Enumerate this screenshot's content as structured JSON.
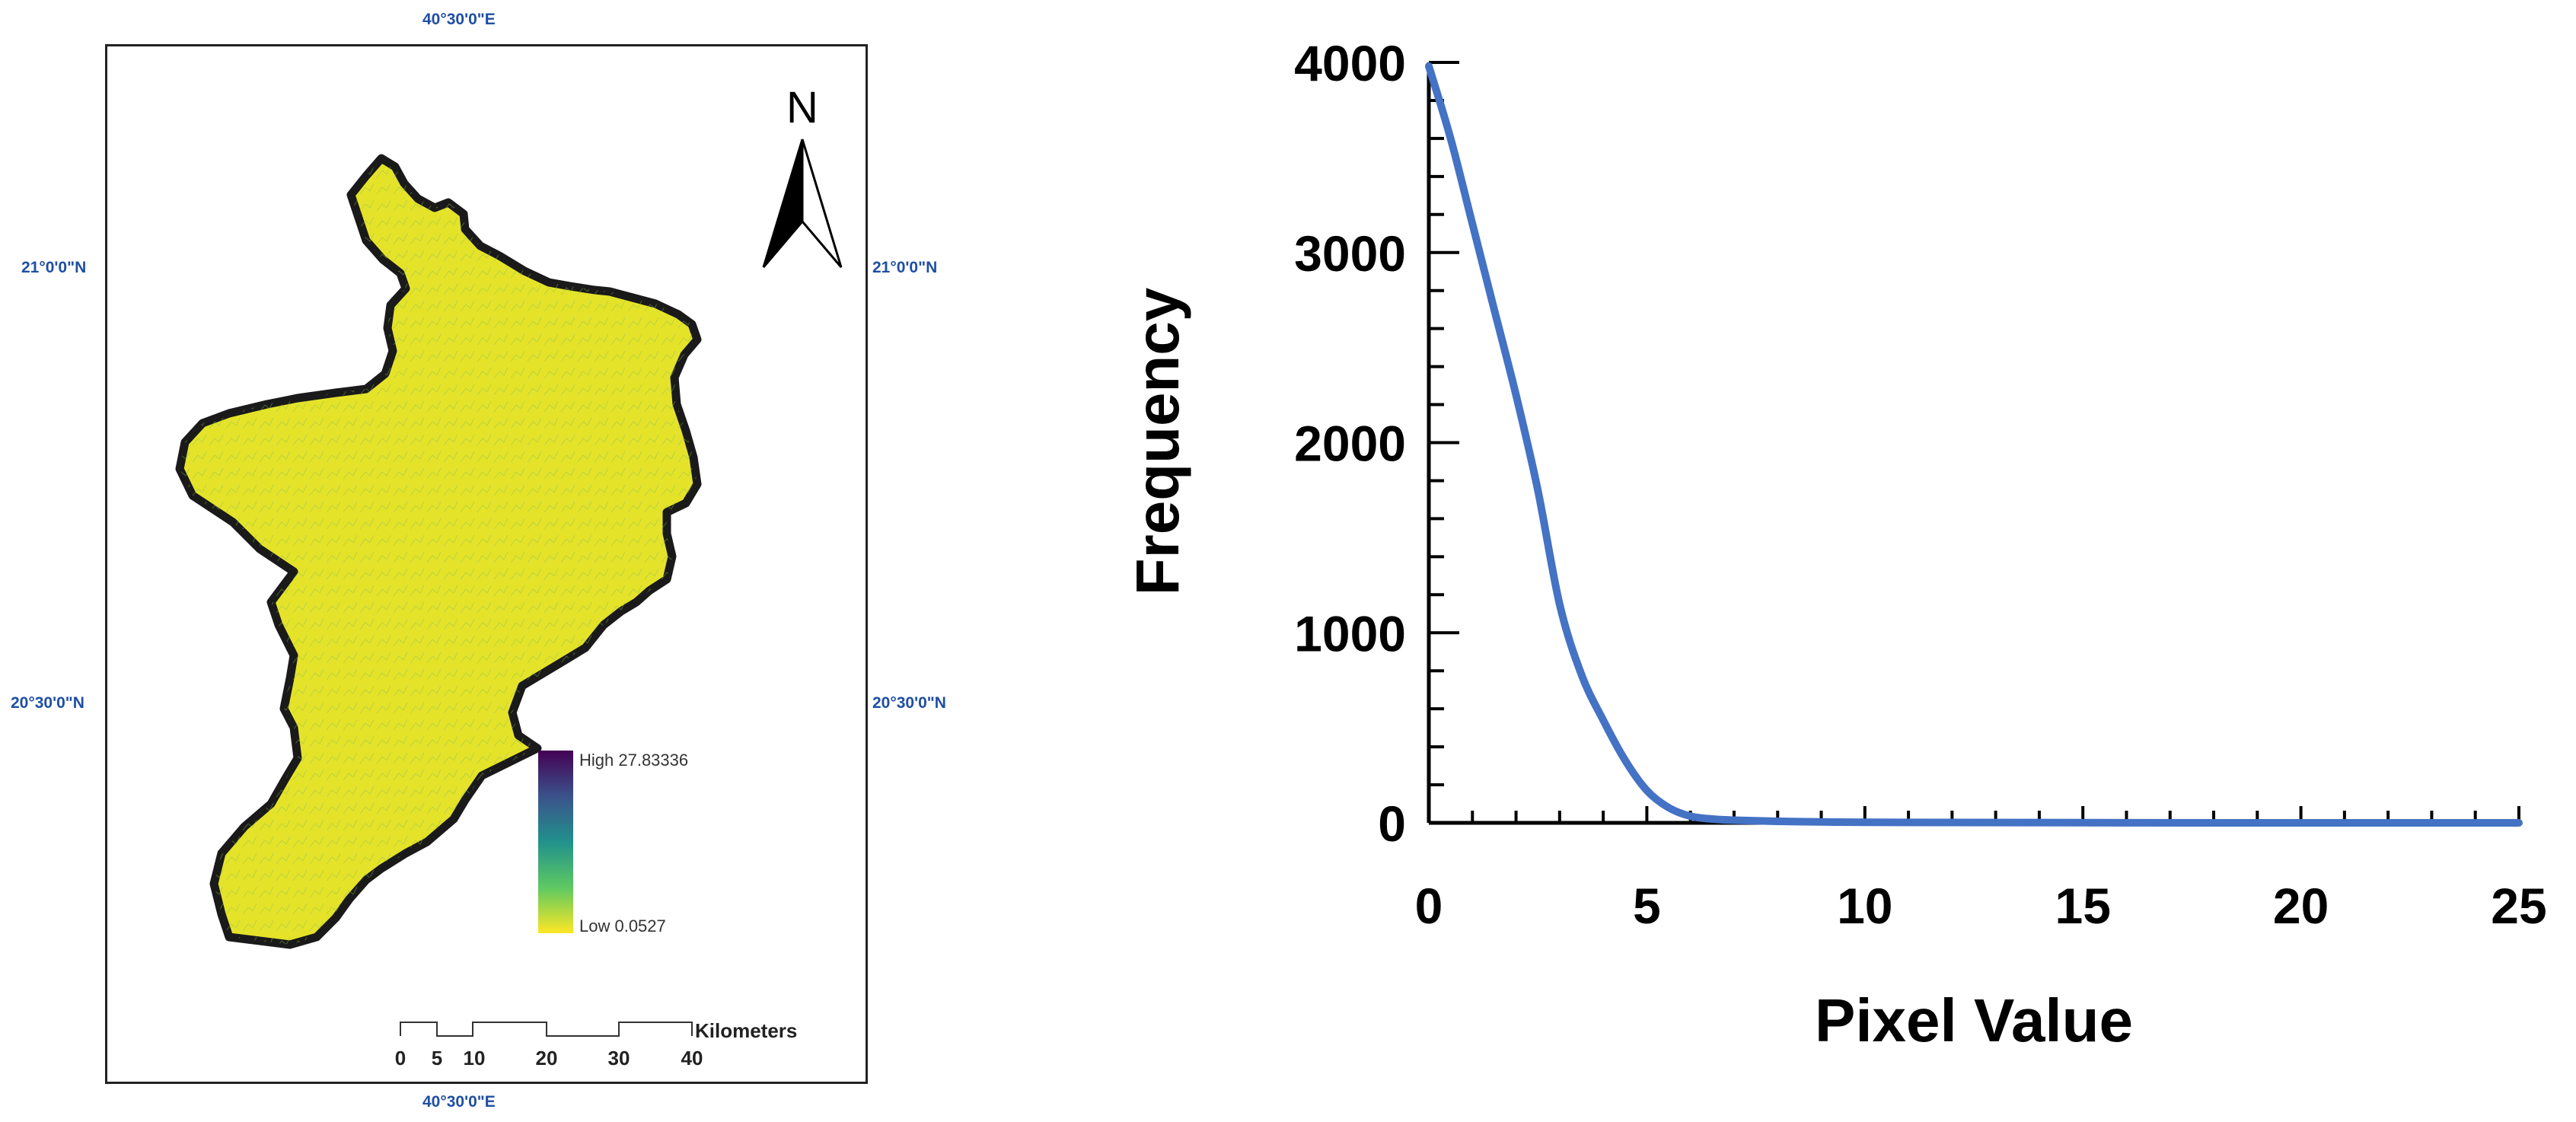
{
  "map": {
    "coords": {
      "top_lon": "40°30'0\"E",
      "bottom_lon": "40°30'0\"E",
      "left_lat_upper": "21°0'0\"N",
      "left_lat_lower": "20°30'0\"N",
      "right_lat_upper": "21°0'0\"N",
      "right_lat_lower": "20°30'0\"N"
    },
    "north_label": "N",
    "legend": {
      "high_label": "High 27.83336",
      "low_label": "Low 0.0527",
      "colors": [
        "#440154",
        "#3b528b",
        "#21918c",
        "#5ec962",
        "#fde725"
      ]
    },
    "scale_bar": {
      "unit": "Kilometers",
      "ticks": [
        "0",
        "5",
        "10",
        "20",
        "30",
        "40"
      ]
    },
    "fill_color": "#e4e32a",
    "boundary_color": "#1a1a1a"
  },
  "chart_data": {
    "type": "line",
    "title": "",
    "xlabel": "Pixel Value",
    "ylabel": "Frequency",
    "xlim": [
      0,
      25
    ],
    "ylim": [
      0,
      4000
    ],
    "x_ticks": [
      "0",
      "5",
      "10",
      "15",
      "20",
      "25"
    ],
    "y_ticks": [
      "0",
      "1000",
      "2000",
      "3000",
      "4000"
    ],
    "grid": false,
    "line_color": "#4472c4",
    "series": [
      {
        "x": [
          0,
          0.5,
          1,
          1.5,
          2,
          2.5,
          3,
          3.5,
          4,
          4.5,
          5,
          5.5,
          6,
          6.5,
          7,
          8,
          9,
          10,
          12,
          15,
          20,
          25
        ],
        "values": [
          3980,
          3600,
          3150,
          2700,
          2250,
          1750,
          1150,
          780,
          540,
          330,
          170,
          80,
          35,
          20,
          14,
          8,
          5,
          3,
          2,
          1,
          0,
          0
        ]
      }
    ]
  }
}
